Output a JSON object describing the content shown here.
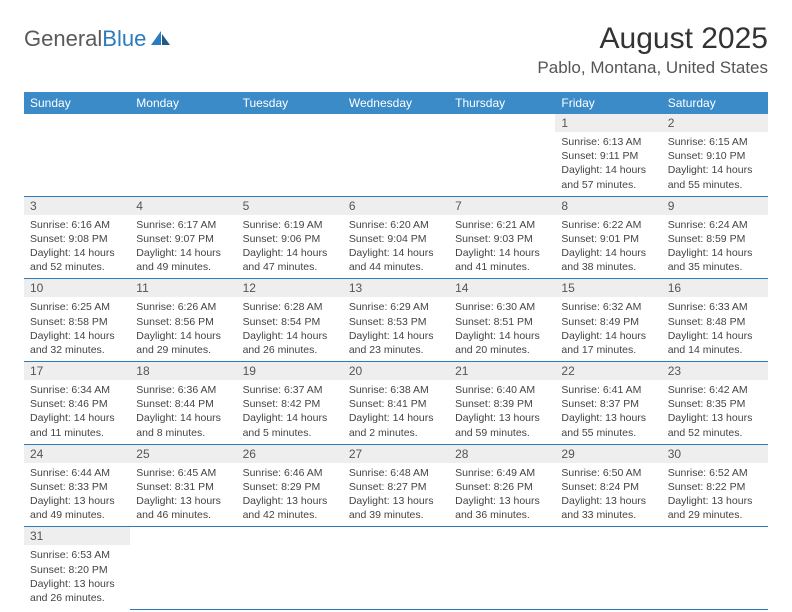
{
  "brand": {
    "part1": "General",
    "part2": "Blue"
  },
  "title": {
    "monthYear": "August 2025",
    "location": "Pablo, Montana, United States"
  },
  "colors": {
    "header_bg": "#3b8bc9",
    "header_text": "#ffffff",
    "daynum_bg": "#eeeeee",
    "row_border": "#2b7bbf",
    "body_text": "#444444",
    "logo_gray": "#5a5a5a",
    "logo_blue": "#2b7bbf"
  },
  "weekdays": [
    "Sunday",
    "Monday",
    "Tuesday",
    "Wednesday",
    "Thursday",
    "Friday",
    "Saturday"
  ],
  "startOffset": 5,
  "days": [
    {
      "n": "1",
      "sunrise": "6:13 AM",
      "sunset": "9:11 PM",
      "daylight": "14 hours and 57 minutes."
    },
    {
      "n": "2",
      "sunrise": "6:15 AM",
      "sunset": "9:10 PM",
      "daylight": "14 hours and 55 minutes."
    },
    {
      "n": "3",
      "sunrise": "6:16 AM",
      "sunset": "9:08 PM",
      "daylight": "14 hours and 52 minutes."
    },
    {
      "n": "4",
      "sunrise": "6:17 AM",
      "sunset": "9:07 PM",
      "daylight": "14 hours and 49 minutes."
    },
    {
      "n": "5",
      "sunrise": "6:19 AM",
      "sunset": "9:06 PM",
      "daylight": "14 hours and 47 minutes."
    },
    {
      "n": "6",
      "sunrise": "6:20 AM",
      "sunset": "9:04 PM",
      "daylight": "14 hours and 44 minutes."
    },
    {
      "n": "7",
      "sunrise": "6:21 AM",
      "sunset": "9:03 PM",
      "daylight": "14 hours and 41 minutes."
    },
    {
      "n": "8",
      "sunrise": "6:22 AM",
      "sunset": "9:01 PM",
      "daylight": "14 hours and 38 minutes."
    },
    {
      "n": "9",
      "sunrise": "6:24 AM",
      "sunset": "8:59 PM",
      "daylight": "14 hours and 35 minutes."
    },
    {
      "n": "10",
      "sunrise": "6:25 AM",
      "sunset": "8:58 PM",
      "daylight": "14 hours and 32 minutes."
    },
    {
      "n": "11",
      "sunrise": "6:26 AM",
      "sunset": "8:56 PM",
      "daylight": "14 hours and 29 minutes."
    },
    {
      "n": "12",
      "sunrise": "6:28 AM",
      "sunset": "8:54 PM",
      "daylight": "14 hours and 26 minutes."
    },
    {
      "n": "13",
      "sunrise": "6:29 AM",
      "sunset": "8:53 PM",
      "daylight": "14 hours and 23 minutes."
    },
    {
      "n": "14",
      "sunrise": "6:30 AM",
      "sunset": "8:51 PM",
      "daylight": "14 hours and 20 minutes."
    },
    {
      "n": "15",
      "sunrise": "6:32 AM",
      "sunset": "8:49 PM",
      "daylight": "14 hours and 17 minutes."
    },
    {
      "n": "16",
      "sunrise": "6:33 AM",
      "sunset": "8:48 PM",
      "daylight": "14 hours and 14 minutes."
    },
    {
      "n": "17",
      "sunrise": "6:34 AM",
      "sunset": "8:46 PM",
      "daylight": "14 hours and 11 minutes."
    },
    {
      "n": "18",
      "sunrise": "6:36 AM",
      "sunset": "8:44 PM",
      "daylight": "14 hours and 8 minutes."
    },
    {
      "n": "19",
      "sunrise": "6:37 AM",
      "sunset": "8:42 PM",
      "daylight": "14 hours and 5 minutes."
    },
    {
      "n": "20",
      "sunrise": "6:38 AM",
      "sunset": "8:41 PM",
      "daylight": "14 hours and 2 minutes."
    },
    {
      "n": "21",
      "sunrise": "6:40 AM",
      "sunset": "8:39 PM",
      "daylight": "13 hours and 59 minutes."
    },
    {
      "n": "22",
      "sunrise": "6:41 AM",
      "sunset": "8:37 PM",
      "daylight": "13 hours and 55 minutes."
    },
    {
      "n": "23",
      "sunrise": "6:42 AM",
      "sunset": "8:35 PM",
      "daylight": "13 hours and 52 minutes."
    },
    {
      "n": "24",
      "sunrise": "6:44 AM",
      "sunset": "8:33 PM",
      "daylight": "13 hours and 49 minutes."
    },
    {
      "n": "25",
      "sunrise": "6:45 AM",
      "sunset": "8:31 PM",
      "daylight": "13 hours and 46 minutes."
    },
    {
      "n": "26",
      "sunrise": "6:46 AM",
      "sunset": "8:29 PM",
      "daylight": "13 hours and 42 minutes."
    },
    {
      "n": "27",
      "sunrise": "6:48 AM",
      "sunset": "8:27 PM",
      "daylight": "13 hours and 39 minutes."
    },
    {
      "n": "28",
      "sunrise": "6:49 AM",
      "sunset": "8:26 PM",
      "daylight": "13 hours and 36 minutes."
    },
    {
      "n": "29",
      "sunrise": "6:50 AM",
      "sunset": "8:24 PM",
      "daylight": "13 hours and 33 minutes."
    },
    {
      "n": "30",
      "sunrise": "6:52 AM",
      "sunset": "8:22 PM",
      "daylight": "13 hours and 29 minutes."
    },
    {
      "n": "31",
      "sunrise": "6:53 AM",
      "sunset": "8:20 PM",
      "daylight": "13 hours and 26 minutes."
    }
  ],
  "labels": {
    "sunrise": "Sunrise: ",
    "sunset": "Sunset: ",
    "daylight": "Daylight: "
  }
}
